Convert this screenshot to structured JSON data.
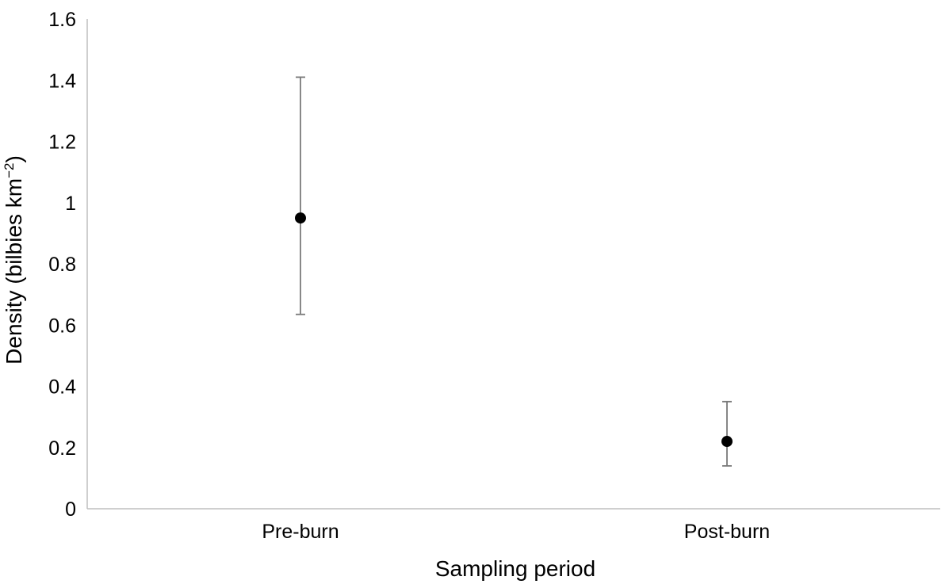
{
  "chart_data": {
    "type": "scatter",
    "xlabel": "Sampling period",
    "ylabel": {
      "text": "Density (bilbies km",
      "superscript": "−2",
      "suffix": ")"
    },
    "categories": [
      "Pre-burn",
      "Post-burn"
    ],
    "series": [
      {
        "values": [
          0.95,
          0.22
        ],
        "error_low": [
          0.635,
          0.14
        ],
        "error_high": [
          1.41,
          0.35
        ]
      }
    ],
    "ylim": [
      0,
      1.6
    ],
    "yticks": [
      0,
      0.2,
      0.4,
      0.6,
      0.8,
      1,
      1.2,
      1.4,
      1.6
    ],
    "ytick_labels": [
      "0",
      "0.2",
      "0.4",
      "0.6",
      "0.8",
      "1",
      "1.2",
      "1.4",
      "1.6"
    ],
    "grid": false,
    "legend": "none",
    "colors": {
      "marker": "#000000",
      "error_bar": "#7a7a7a",
      "axis": "#bfbfbf"
    }
  }
}
